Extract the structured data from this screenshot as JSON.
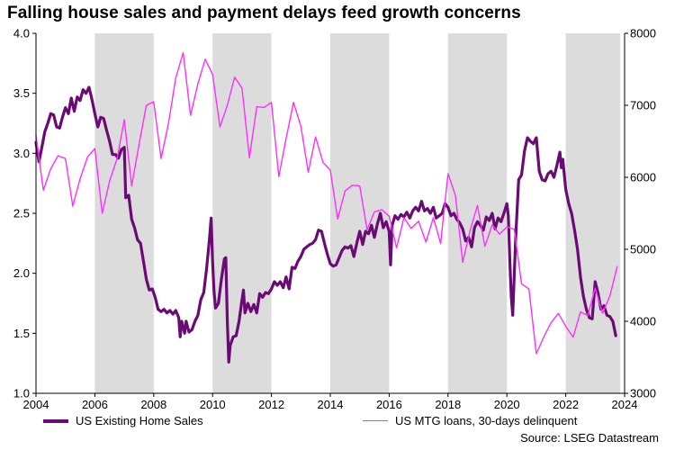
{
  "title": "Falling house sales and payment delays feed growth concerns",
  "source": "Source: LSEG Datastream",
  "colors": {
    "sales": "#6a0a75",
    "delinquent": "#ff2eff",
    "band": "#dcdcdc"
  },
  "chart_data": {
    "type": "line",
    "title": "Falling house sales and payment delays feed growth concerns",
    "x_ticks": [
      "2004",
      "2006",
      "2008",
      "2010",
      "2012",
      "2014",
      "2016",
      "2018",
      "2020",
      "2022",
      "2024"
    ],
    "xlim": [
      2004,
      2024
    ],
    "shaded_ranges": [
      [
        2006,
        2008
      ],
      [
        2010,
        2012
      ],
      [
        2014,
        2016
      ],
      [
        2018,
        2020
      ],
      [
        2022,
        2023.85
      ]
    ],
    "left_axis": {
      "ylim": [
        1.0,
        4.0
      ],
      "ticks": [
        "1.0",
        "1.5",
        "2.0",
        "2.5",
        "3.0",
        "3.5",
        "4.0"
      ]
    },
    "right_axis": {
      "ylim": [
        3000,
        8000
      ],
      "ticks": [
        "3000",
        "4000",
        "5000",
        "6000",
        "7000",
        "8000"
      ]
    },
    "series": [
      {
        "name": "US Existing Home Sales",
        "axis": "left",
        "points": [
          [
            2004.0,
            3.09
          ],
          [
            2004.1,
            2.93
          ],
          [
            2004.2,
            3.05
          ],
          [
            2004.3,
            3.18
          ],
          [
            2004.4,
            3.25
          ],
          [
            2004.5,
            3.33
          ],
          [
            2004.6,
            3.32
          ],
          [
            2004.7,
            3.22
          ],
          [
            2004.8,
            3.21
          ],
          [
            2004.9,
            3.3
          ],
          [
            2005.0,
            3.38
          ],
          [
            2005.1,
            3.33
          ],
          [
            2005.2,
            3.46
          ],
          [
            2005.3,
            3.35
          ],
          [
            2005.4,
            3.47
          ],
          [
            2005.5,
            3.44
          ],
          [
            2005.6,
            3.53
          ],
          [
            2005.7,
            3.5
          ],
          [
            2005.8,
            3.55
          ],
          [
            2005.9,
            3.45
          ],
          [
            2006.0,
            3.33
          ],
          [
            2006.1,
            3.22
          ],
          [
            2006.2,
            3.3
          ],
          [
            2006.3,
            3.29
          ],
          [
            2006.4,
            3.19
          ],
          [
            2006.5,
            3.1
          ],
          [
            2006.6,
            2.99
          ],
          [
            2006.7,
            2.99
          ],
          [
            2006.8,
            2.96
          ],
          [
            2006.9,
            3.03
          ],
          [
            2007.0,
            3.05
          ],
          [
            2007.05,
            2.63
          ],
          [
            2007.15,
            2.65
          ],
          [
            2007.25,
            2.45
          ],
          [
            2007.35,
            2.38
          ],
          [
            2007.45,
            2.28
          ],
          [
            2007.55,
            2.25
          ],
          [
            2007.65,
            2.1
          ],
          [
            2007.75,
            1.95
          ],
          [
            2007.85,
            1.86
          ],
          [
            2007.95,
            1.87
          ],
          [
            2008.05,
            1.8
          ],
          [
            2008.15,
            1.7
          ],
          [
            2008.25,
            1.68
          ],
          [
            2008.35,
            1.7
          ],
          [
            2008.45,
            1.67
          ],
          [
            2008.55,
            1.69
          ],
          [
            2008.65,
            1.66
          ],
          [
            2008.75,
            1.69
          ],
          [
            2008.85,
            1.63
          ],
          [
            2008.9,
            1.47
          ],
          [
            2008.95,
            1.6
          ],
          [
            2009.05,
            1.5
          ],
          [
            2009.1,
            1.6
          ],
          [
            2009.2,
            1.51
          ],
          [
            2009.3,
            1.53
          ],
          [
            2009.4,
            1.6
          ],
          [
            2009.5,
            1.65
          ],
          [
            2009.6,
            1.78
          ],
          [
            2009.7,
            1.84
          ],
          [
            2009.8,
            2.05
          ],
          [
            2009.9,
            2.3
          ],
          [
            2009.95,
            2.46
          ],
          [
            2010.0,
            2.1
          ],
          [
            2010.05,
            1.85
          ],
          [
            2010.1,
            1.71
          ],
          [
            2010.2,
            1.75
          ],
          [
            2010.3,
            1.95
          ],
          [
            2010.4,
            2.12
          ],
          [
            2010.45,
            2.13
          ],
          [
            2010.5,
            1.6
          ],
          [
            2010.55,
            1.26
          ],
          [
            2010.6,
            1.4
          ],
          [
            2010.7,
            1.47
          ],
          [
            2010.8,
            1.48
          ],
          [
            2010.9,
            1.6
          ],
          [
            2011.0,
            1.78
          ],
          [
            2011.05,
            1.86
          ],
          [
            2011.1,
            1.67
          ],
          [
            2011.2,
            1.75
          ],
          [
            2011.3,
            1.68
          ],
          [
            2011.4,
            1.74
          ],
          [
            2011.5,
            1.67
          ],
          [
            2011.6,
            1.83
          ],
          [
            2011.7,
            1.8
          ],
          [
            2011.8,
            1.84
          ],
          [
            2011.9,
            1.83
          ],
          [
            2012.0,
            1.87
          ],
          [
            2012.1,
            1.93
          ],
          [
            2012.2,
            1.9
          ],
          [
            2012.3,
            1.93
          ],
          [
            2012.4,
            1.88
          ],
          [
            2012.5,
            1.97
          ],
          [
            2012.6,
            1.87
          ],
          [
            2012.7,
            2.05
          ],
          [
            2012.8,
            2.04
          ],
          [
            2012.9,
            2.1
          ],
          [
            2013.0,
            2.14
          ],
          [
            2013.1,
            2.2
          ],
          [
            2013.2,
            2.22
          ],
          [
            2013.3,
            2.24
          ],
          [
            2013.4,
            2.25
          ],
          [
            2013.5,
            2.28
          ],
          [
            2013.6,
            2.36
          ],
          [
            2013.7,
            2.35
          ],
          [
            2013.8,
            2.25
          ],
          [
            2013.9,
            2.16
          ],
          [
            2014.0,
            2.08
          ],
          [
            2014.1,
            2.06
          ],
          [
            2014.2,
            2.07
          ],
          [
            2014.3,
            2.13
          ],
          [
            2014.4,
            2.19
          ],
          [
            2014.5,
            2.22
          ],
          [
            2014.6,
            2.21
          ],
          [
            2014.7,
            2.23
          ],
          [
            2014.8,
            2.14
          ],
          [
            2014.9,
            2.25
          ],
          [
            2015.0,
            2.35
          ],
          [
            2015.1,
            2.24
          ],
          [
            2015.2,
            2.35
          ],
          [
            2015.3,
            2.33
          ],
          [
            2015.4,
            2.4
          ],
          [
            2015.5,
            2.3
          ],
          [
            2015.6,
            2.41
          ],
          [
            2015.7,
            2.5
          ],
          [
            2015.8,
            2.38
          ],
          [
            2015.9,
            2.43
          ],
          [
            2016.0,
            2.35
          ],
          [
            2016.05,
            2.07
          ],
          [
            2016.1,
            2.4
          ],
          [
            2016.2,
            2.48
          ],
          [
            2016.3,
            2.45
          ],
          [
            2016.4,
            2.49
          ],
          [
            2016.5,
            2.47
          ],
          [
            2016.6,
            2.51
          ],
          [
            2016.7,
            2.46
          ],
          [
            2016.8,
            2.52
          ],
          [
            2016.9,
            2.55
          ],
          [
            2017.0,
            2.52
          ],
          [
            2017.1,
            2.6
          ],
          [
            2017.2,
            2.52
          ],
          [
            2017.3,
            2.54
          ],
          [
            2017.4,
            2.5
          ],
          [
            2017.5,
            2.55
          ],
          [
            2017.6,
            2.46
          ],
          [
            2017.7,
            2.48
          ],
          [
            2017.8,
            2.5
          ],
          [
            2017.9,
            2.58
          ],
          [
            2018.0,
            2.55
          ],
          [
            2018.1,
            2.48
          ],
          [
            2018.2,
            2.5
          ],
          [
            2018.3,
            2.45
          ],
          [
            2018.4,
            2.42
          ],
          [
            2018.5,
            2.37
          ],
          [
            2018.6,
            2.27
          ],
          [
            2018.7,
            2.3
          ],
          [
            2018.8,
            2.22
          ],
          [
            2018.9,
            2.38
          ],
          [
            2019.0,
            2.43
          ],
          [
            2019.1,
            2.4
          ],
          [
            2019.2,
            2.36
          ],
          [
            2019.3,
            2.47
          ],
          [
            2019.4,
            2.44
          ],
          [
            2019.5,
            2.5
          ],
          [
            2019.6,
            2.37
          ],
          [
            2019.7,
            2.46
          ],
          [
            2019.8,
            2.43
          ],
          [
            2019.9,
            2.5
          ],
          [
            2020.0,
            2.58
          ],
          [
            2020.05,
            2.48
          ],
          [
            2020.1,
            2.1
          ],
          [
            2020.15,
            1.8
          ],
          [
            2020.2,
            1.65
          ],
          [
            2020.3,
            2.3
          ],
          [
            2020.4,
            2.78
          ],
          [
            2020.5,
            2.82
          ],
          [
            2020.6,
            3.02
          ],
          [
            2020.7,
            3.13
          ],
          [
            2020.8,
            3.1
          ],
          [
            2020.9,
            3.08
          ],
          [
            2021.0,
            3.13
          ],
          [
            2021.1,
            2.85
          ],
          [
            2021.2,
            2.78
          ],
          [
            2021.3,
            2.77
          ],
          [
            2021.4,
            2.83
          ],
          [
            2021.5,
            2.85
          ],
          [
            2021.6,
            2.8
          ],
          [
            2021.7,
            2.9
          ],
          [
            2021.8,
            3.01
          ],
          [
            2021.85,
            2.88
          ],
          [
            2021.9,
            2.95
          ],
          [
            2022.0,
            2.7
          ],
          [
            2022.1,
            2.58
          ],
          [
            2022.2,
            2.5
          ],
          [
            2022.3,
            2.36
          ],
          [
            2022.4,
            2.2
          ],
          [
            2022.5,
            1.97
          ],
          [
            2022.6,
            1.81
          ],
          [
            2022.7,
            1.7
          ],
          [
            2022.8,
            1.63
          ],
          [
            2022.9,
            1.62
          ],
          [
            2023.0,
            1.93
          ],
          [
            2023.1,
            1.83
          ],
          [
            2023.2,
            1.7
          ],
          [
            2023.3,
            1.73
          ],
          [
            2023.4,
            1.65
          ],
          [
            2023.5,
            1.64
          ],
          [
            2023.6,
            1.6
          ],
          [
            2023.7,
            1.48
          ]
        ]
      },
      {
        "name": "US MTG loans, 30-days delinquent",
        "axis": "right",
        "points": [
          [
            2004.0,
            6580
          ],
          [
            2004.25,
            5820
          ],
          [
            2004.5,
            6120
          ],
          [
            2004.75,
            6300
          ],
          [
            2005.0,
            6260
          ],
          [
            2005.25,
            5600
          ],
          [
            2005.5,
            5980
          ],
          [
            2005.75,
            6280
          ],
          [
            2006.0,
            6400
          ],
          [
            2006.25,
            5500
          ],
          [
            2006.5,
            5950
          ],
          [
            2006.75,
            6250
          ],
          [
            2007.0,
            6800
          ],
          [
            2007.25,
            5880
          ],
          [
            2007.5,
            6450
          ],
          [
            2007.75,
            7000
          ],
          [
            2008.0,
            7050
          ],
          [
            2008.25,
            6260
          ],
          [
            2008.5,
            6750
          ],
          [
            2008.75,
            7380
          ],
          [
            2009.0,
            7730
          ],
          [
            2009.25,
            6860
          ],
          [
            2009.5,
            7300
          ],
          [
            2009.75,
            7640
          ],
          [
            2010.0,
            7430
          ],
          [
            2010.25,
            6700
          ],
          [
            2010.5,
            7000
          ],
          [
            2010.75,
            7390
          ],
          [
            2011.0,
            7240
          ],
          [
            2011.25,
            6270
          ],
          [
            2011.5,
            6980
          ],
          [
            2011.75,
            6970
          ],
          [
            2012.0,
            7040
          ],
          [
            2012.25,
            6010
          ],
          [
            2012.5,
            6540
          ],
          [
            2012.75,
            7040
          ],
          [
            2013.0,
            6710
          ],
          [
            2013.25,
            6070
          ],
          [
            2013.5,
            6560
          ],
          [
            2013.75,
            6210
          ],
          [
            2014.0,
            6100
          ],
          [
            2014.25,
            5420
          ],
          [
            2014.5,
            5810
          ],
          [
            2014.75,
            5890
          ],
          [
            2015.0,
            5880
          ],
          [
            2015.25,
            5270
          ],
          [
            2015.5,
            5520
          ],
          [
            2015.75,
            5550
          ],
          [
            2016.0,
            5460
          ],
          [
            2016.25,
            5020
          ],
          [
            2016.5,
            5440
          ],
          [
            2016.75,
            5290
          ],
          [
            2017.0,
            5390
          ],
          [
            2017.25,
            5100
          ],
          [
            2017.5,
            5440
          ],
          [
            2017.75,
            5080
          ],
          [
            2018.0,
            6050
          ],
          [
            2018.25,
            5750
          ],
          [
            2018.5,
            4820
          ],
          [
            2018.75,
            5260
          ],
          [
            2019.0,
            5610
          ],
          [
            2019.25,
            5040
          ],
          [
            2019.5,
            5340
          ],
          [
            2019.75,
            5210
          ],
          [
            2020.0,
            5310
          ],
          [
            2020.25,
            5280
          ],
          [
            2020.5,
            4520
          ],
          [
            2020.75,
            4450
          ],
          [
            2021.0,
            3550
          ],
          [
            2021.25,
            3780
          ],
          [
            2021.5,
            3980
          ],
          [
            2021.75,
            4110
          ],
          [
            2022.0,
            3930
          ],
          [
            2022.25,
            3780
          ],
          [
            2022.5,
            4130
          ],
          [
            2022.75,
            4080
          ],
          [
            2023.0,
            4460
          ],
          [
            2023.25,
            4110
          ],
          [
            2023.5,
            4350
          ],
          [
            2023.75,
            4760
          ]
        ]
      }
    ]
  }
}
